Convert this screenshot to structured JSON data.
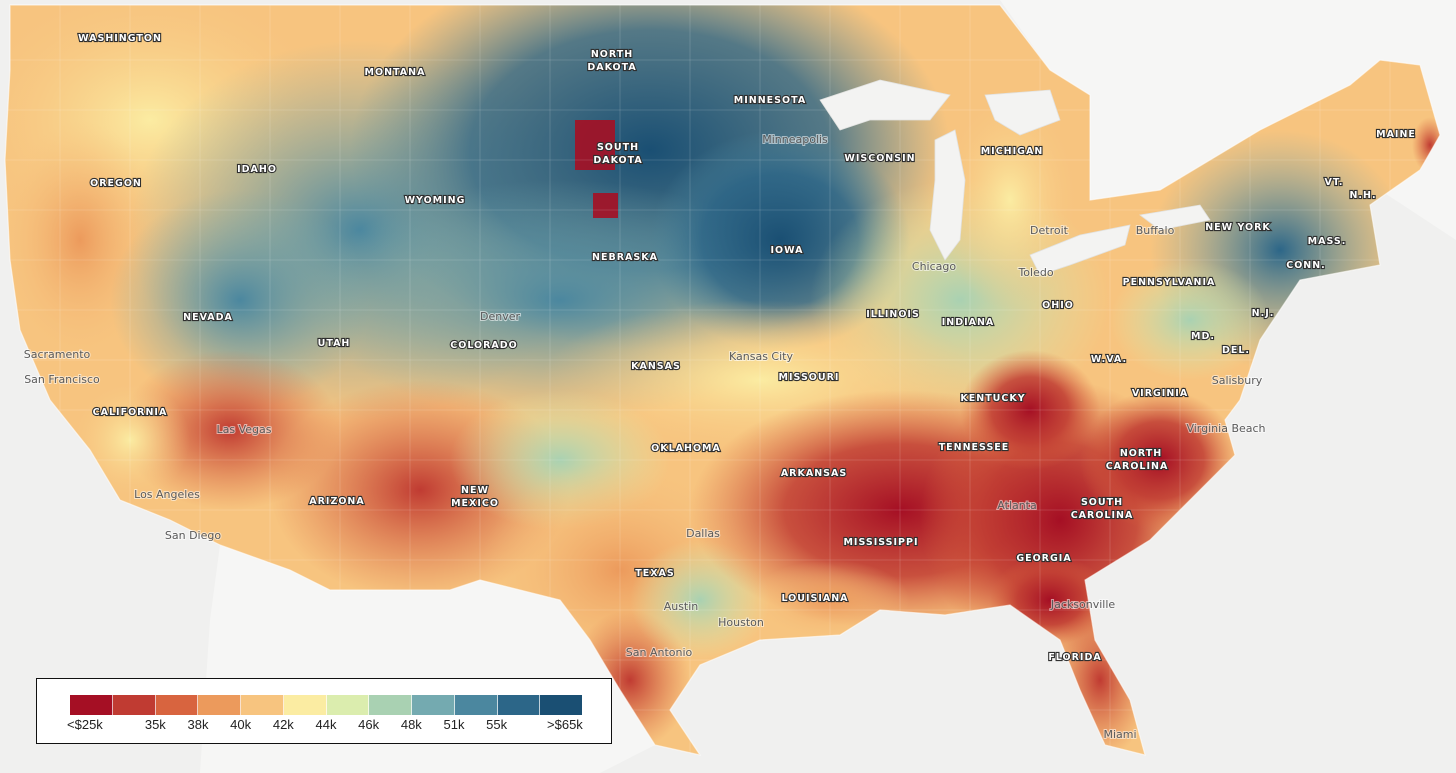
{
  "map": {
    "legend": {
      "colors": [
        "#a50f24",
        "#c03b32",
        "#d8643f",
        "#ec9a5c",
        "#f7c47f",
        "#fbeca2",
        "#dbedae",
        "#a9d1b2",
        "#74aab0",
        "#4b879f",
        "#2c6688",
        "#1a4f73"
      ],
      "tick_labels": [
        "<$25k",
        "35k",
        "38k",
        "40k",
        "42k",
        "44k",
        "46k",
        "48k",
        "51k",
        "55k",
        ">$65k"
      ]
    },
    "state_labels": [
      "WASHINGTON",
      "MONTANA",
      "NORTH",
      "DAKOTA",
      "MINNESOTA",
      "OREGON",
      "IDAHO",
      "SOUTH",
      "DAKOTA",
      "WISCONSIN",
      "MICHIGAN",
      "MAINE",
      "WYOMING",
      "VT.",
      "N.H.",
      "NEW YORK",
      "MASS.",
      "CONN.",
      "IOWA",
      "NEBRASKA",
      "PENNSYLVANIA",
      "NEVADA",
      "ILLINOIS",
      "INDIANA",
      "OHIO",
      "N.J.",
      "UTAH",
      "COLORADO",
      "MD.",
      "DEL.",
      "W.VA.",
      "KANSAS",
      "MISSOURI",
      "CALIFORNIA",
      "VIRGINIA",
      "KENTUCKY",
      "TENNESSEE",
      "NORTH",
      "CAROLINA",
      "OKLAHOMA",
      "ARKANSAS",
      "ARIZONA",
      "NEW",
      "MEXICO",
      "SOUTH",
      "CAROLINA",
      "MISSISSIPPI",
      "GEORGIA",
      "TEXAS",
      "LOUISIANA",
      "FLORIDA"
    ],
    "city_labels": [
      "Minneapolis",
      "Detroit",
      "Buffalo",
      "Chicago",
      "Toledo",
      "Denver",
      "Kansas City",
      "Sacramento",
      "San Francisco",
      "Salisbury",
      "Las Vegas",
      "Virginia Beach",
      "Los Angeles",
      "Atlanta",
      "San Diego",
      "Dallas",
      "Austin",
      "Houston",
      "Jacksonville",
      "San Antonio",
      "Miami"
    ]
  }
}
